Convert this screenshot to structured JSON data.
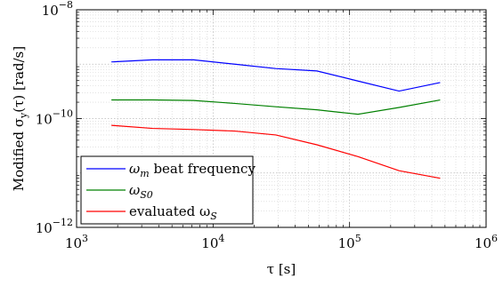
{
  "chart_data": {
    "type": "line",
    "xscale": "log",
    "yscale": "log",
    "xlim": [
      1000,
      1000000
    ],
    "ylim": [
      1e-12,
      1e-08
    ],
    "xlabel": "τ [s]",
    "ylabel": "Modified σ",
    "ylabel_sub": "y",
    "ylabel_rest": "(τ) [rad/s]",
    "grid": true,
    "legend_position": "bottom-left",
    "x_ticks": [
      {
        "value": 1000,
        "base": "10",
        "exp": "3"
      },
      {
        "value": 10000,
        "base": "10",
        "exp": "4"
      },
      {
        "value": 100000,
        "base": "10",
        "exp": "5"
      },
      {
        "value": 1000000,
        "base": "10",
        "exp": "6"
      }
    ],
    "y_ticks": [
      {
        "value": 1e-12,
        "base": "10",
        "exp": "−12"
      },
      {
        "value": 1e-10,
        "base": "10",
        "exp": "−10"
      },
      {
        "value": 1e-08,
        "base": "10",
        "exp": "−8"
      }
    ],
    "series": [
      {
        "name": "ω",
        "name_sub": "m",
        "name_rest": " beat frequency",
        "color": "#0000ff",
        "x": [
          1800,
          3600,
          7200,
          14400,
          28800,
          57600,
          115200,
          230400,
          460800
        ],
        "y": [
          1.1e-09,
          1.2e-09,
          1.2e-09,
          1e-09,
          8.3e-10,
          7.5e-10,
          4.9e-10,
          3.2e-10,
          4.6e-10
        ]
      },
      {
        "name": "ω",
        "name_sub": "S0",
        "name_rest": "",
        "color": "#008000",
        "x": [
          1800,
          3600,
          7200,
          14400,
          28800,
          57600,
          115200,
          230400,
          460800
        ],
        "y": [
          2.2e-10,
          2.2e-10,
          2.15e-10,
          1.9e-10,
          1.65e-10,
          1.45e-10,
          1.2e-10,
          1.6e-10,
          2.2e-10
        ]
      },
      {
        "name": "evaluated ω",
        "name_sub": "S",
        "name_rest": "",
        "color": "#ff0000",
        "x": [
          1800,
          3600,
          7200,
          14400,
          28800,
          57600,
          115200,
          230400,
          460800
        ],
        "y": [
          7.5e-11,
          6.6e-11,
          6.3e-11,
          5.9e-11,
          5e-11,
          3.3e-11,
          2e-11,
          1.1e-11,
          8e-12
        ]
      }
    ]
  }
}
